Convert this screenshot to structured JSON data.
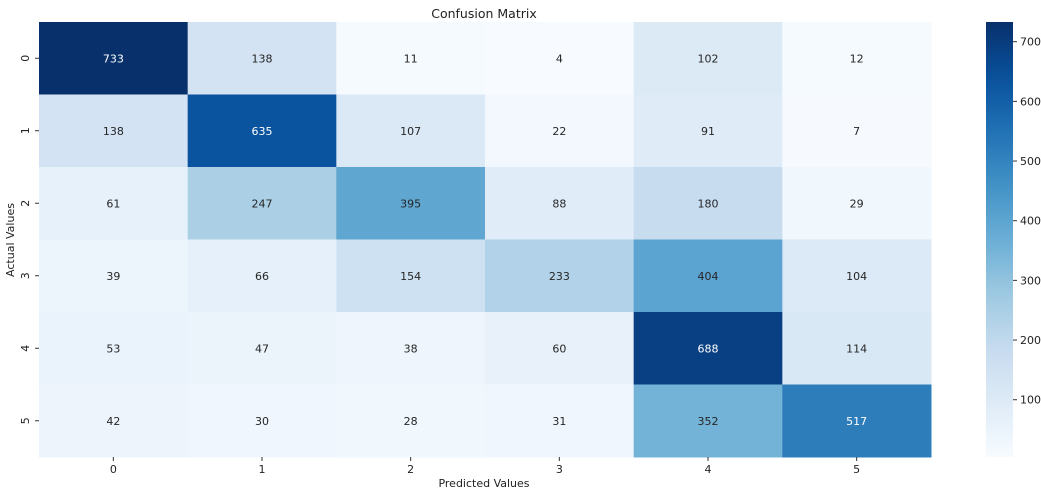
{
  "chart_data": {
    "type": "heatmap",
    "title": "Confusion Matrix",
    "xlabel": "Predicted Values",
    "ylabel": "Actual Values",
    "x_categories": [
      "0",
      "1",
      "2",
      "3",
      "4",
      "5"
    ],
    "y_categories": [
      "0",
      "1",
      "2",
      "3",
      "4",
      "5"
    ],
    "values": [
      [
        733,
        138,
        11,
        4,
        102,
        12
      ],
      [
        138,
        635,
        107,
        22,
        91,
        7
      ],
      [
        61,
        247,
        395,
        88,
        180,
        29
      ],
      [
        39,
        66,
        154,
        233,
        404,
        104
      ],
      [
        53,
        47,
        38,
        60,
        688,
        114
      ],
      [
        42,
        30,
        28,
        31,
        352,
        517
      ]
    ],
    "colormap": "Blues",
    "vmin": 4,
    "vmax": 733,
    "colorbar_ticks": [
      100,
      200,
      300,
      400,
      500,
      600,
      700
    ],
    "annotations": true,
    "colors": {
      "low": "#f7fbff",
      "high": "#08306b"
    }
  }
}
